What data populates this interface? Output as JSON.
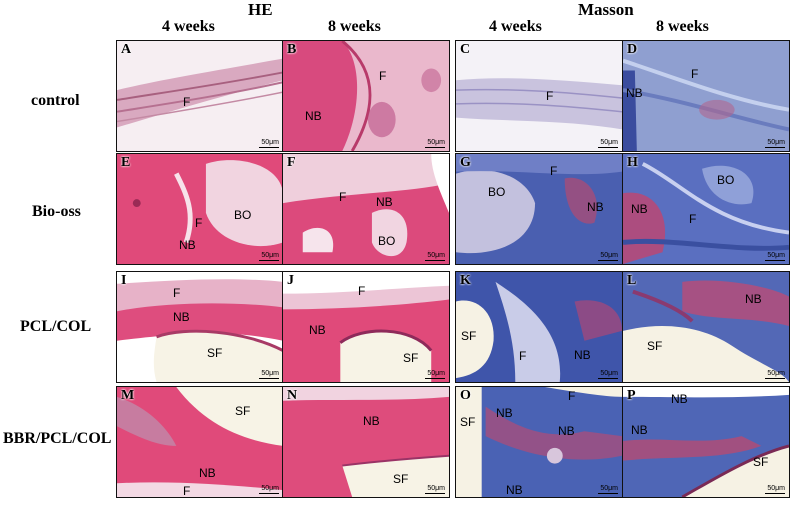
{
  "headers": {
    "group_he": "HE",
    "group_masson": "Masson",
    "col_he_4": "4 weeks",
    "col_he_8": "8 weeks",
    "col_m_4": "4 weeks",
    "col_m_8": "8 weeks"
  },
  "rows": [
    "control",
    "Bio-oss",
    "PCL/COL",
    "BBR/PCL/COL"
  ],
  "scale_bar": "50μm",
  "stain_colors": {
    "he_pink": "#e04a7a",
    "he_light": "#f3dbe6",
    "masson_blue": "#4a5fb0",
    "masson_red": "#c4476a",
    "scaffold": "#f6f2e4"
  },
  "panels": [
    {
      "letter": "A",
      "labels": [
        "F"
      ]
    },
    {
      "letter": "B",
      "labels": [
        "F",
        "NB"
      ]
    },
    {
      "letter": "C",
      "labels": [
        "F"
      ]
    },
    {
      "letter": "D",
      "labels": [
        "F",
        "NB"
      ]
    },
    {
      "letter": "E",
      "labels": [
        "BO",
        "F",
        "NB"
      ]
    },
    {
      "letter": "F",
      "labels": [
        "F",
        "NB",
        "BO"
      ]
    },
    {
      "letter": "G",
      "labels": [
        "F",
        "BO",
        "NB"
      ]
    },
    {
      "letter": "H",
      "labels": [
        "BO",
        "NB",
        "F"
      ]
    },
    {
      "letter": "I",
      "labels": [
        "F",
        "NB",
        "SF"
      ]
    },
    {
      "letter": "J",
      "labels": [
        "F",
        "NB",
        "SF"
      ]
    },
    {
      "letter": "K",
      "labels": [
        "SF",
        "F",
        "NB"
      ]
    },
    {
      "letter": "L",
      "labels": [
        "NB",
        "SF"
      ]
    },
    {
      "letter": "M",
      "labels": [
        "SF",
        "NB",
        "F"
      ]
    },
    {
      "letter": "N",
      "labels": [
        "NB",
        "SF"
      ]
    },
    {
      "letter": "O",
      "labels": [
        "F",
        "SF",
        "NB",
        "NB",
        "NB"
      ]
    },
    {
      "letter": "P",
      "labels": [
        "NB",
        "NB",
        "SF"
      ]
    }
  ]
}
